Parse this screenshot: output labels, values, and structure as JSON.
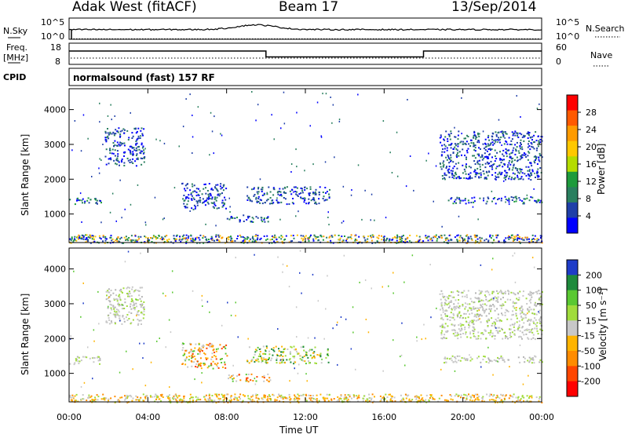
{
  "header": {
    "station": "Adak West (fitACF)",
    "beam": "Beam 17",
    "date": "13/Sep/2014"
  },
  "strip_panels": {
    "nsky": {
      "label": "N.Sky",
      "ticks": [
        "10^5",
        "10^0"
      ],
      "right_label": "N.Search",
      "right_ticks": [
        "10^5",
        "10^0"
      ]
    },
    "freq": {
      "label_line1": "Freq.",
      "label_line2": "[MHz]",
      "ticks": [
        "18",
        "8"
      ],
      "right_label": "Nave",
      "right_ticks": [
        "60",
        "0"
      ],
      "frequency_steps": [
        {
          "from": 0,
          "to": 10,
          "value": "high"
        },
        {
          "from": 10,
          "to": 18,
          "value": "low"
        },
        {
          "from": 18,
          "to": 24,
          "value": "high"
        }
      ]
    },
    "cpid": {
      "label": "CPID",
      "text": "normalsound (fast) 157 RF"
    }
  },
  "chart_data": [
    {
      "type": "heatmap",
      "name": "power",
      "ylabel": "Slant Range [km]",
      "ylim": [
        180,
        4600
      ],
      "yticks": [
        "4000",
        "3000",
        "2000",
        "1000"
      ],
      "yticks_values": [
        4000,
        3000,
        2000,
        1000
      ],
      "xlim": [
        0,
        24
      ],
      "colorbar": {
        "label": "Power [dB]",
        "ticks": [
          "28",
          "24",
          "20",
          "16",
          "12",
          "8",
          "4"
        ],
        "colors": [
          "#ff0000",
          "#ff5a00",
          "#ff9b00",
          "#ffc800",
          "#b4dc00",
          "#1e9b3c",
          "#2a7f5f",
          "#1f3fa8",
          "#0000ff"
        ]
      },
      "echo_regions": [
        {
          "t0": 0.0,
          "t1": 1.6,
          "r0": 1280,
          "r1": 1500,
          "level": "mid"
        },
        {
          "t0": 1.8,
          "t1": 3.8,
          "r0": 2400,
          "r1": 3500,
          "level": "low"
        },
        {
          "t0": 5.7,
          "t1": 8.0,
          "r0": 1150,
          "r1": 1900,
          "level": "low"
        },
        {
          "t0": 8.0,
          "t1": 10.2,
          "r0": 780,
          "r1": 1000,
          "level": "mid"
        },
        {
          "t0": 9.0,
          "t1": 13.2,
          "r0": 1300,
          "r1": 1800,
          "level": "low"
        },
        {
          "t0": 18.8,
          "t1": 24.0,
          "r0": 2000,
          "r1": 3400,
          "level": "low"
        },
        {
          "t0": 19.0,
          "t1": 24.0,
          "r0": 1320,
          "r1": 1520,
          "level": "mid"
        },
        {
          "t0": 0.0,
          "t1": 24.0,
          "r0": 180,
          "r1": 420,
          "level": "ground"
        }
      ]
    },
    {
      "type": "heatmap",
      "name": "velocity",
      "ylabel": "Slant Range [km]",
      "ylim": [
        180,
        4600
      ],
      "yticks": [
        "4000",
        "3000",
        "2000",
        "1000"
      ],
      "yticks_values": [
        4000,
        3000,
        2000,
        1000
      ],
      "xlim": [
        0,
        24
      ],
      "xlabel": "Time UT",
      "xticks": [
        "00:00",
        "04:00",
        "08:00",
        "12:00",
        "16:00",
        "20:00",
        "00:00"
      ],
      "colorbar": {
        "label": "Velocity [m s⁻¹]",
        "ticks": [
          "200",
          "100",
          "50",
          "15",
          "-15",
          "-50",
          "-100",
          "-200"
        ],
        "colors": [
          "#1e3cc8",
          "#1e8a3c",
          "#5ac832",
          "#a0dc3c",
          "#c8c8c8",
          "#ffb400",
          "#ff8c00",
          "#ff4600",
          "#ff0000"
        ]
      },
      "echo_regions": [
        {
          "t0": 0.0,
          "t1": 1.6,
          "r0": 1280,
          "r1": 1500,
          "level": "grey"
        },
        {
          "t0": 1.8,
          "t1": 3.8,
          "r0": 2400,
          "r1": 3500,
          "level": "grey"
        },
        {
          "t0": 5.7,
          "t1": 8.0,
          "r0": 1150,
          "r1": 1900,
          "level": "orange"
        },
        {
          "t0": 8.0,
          "t1": 10.2,
          "r0": 780,
          "r1": 1000,
          "level": "orange"
        },
        {
          "t0": 9.0,
          "t1": 13.2,
          "r0": 1300,
          "r1": 1800,
          "level": "green"
        },
        {
          "t0": 18.8,
          "t1": 24.0,
          "r0": 2000,
          "r1": 3400,
          "level": "grey"
        },
        {
          "t0": 19.0,
          "t1": 24.0,
          "r0": 1320,
          "r1": 1520,
          "level": "grey"
        },
        {
          "t0": 0.0,
          "t1": 24.0,
          "r0": 180,
          "r1": 420,
          "level": "ground"
        }
      ]
    }
  ],
  "colors": {
    "frame": "#000000",
    "background": "#ffffff"
  }
}
